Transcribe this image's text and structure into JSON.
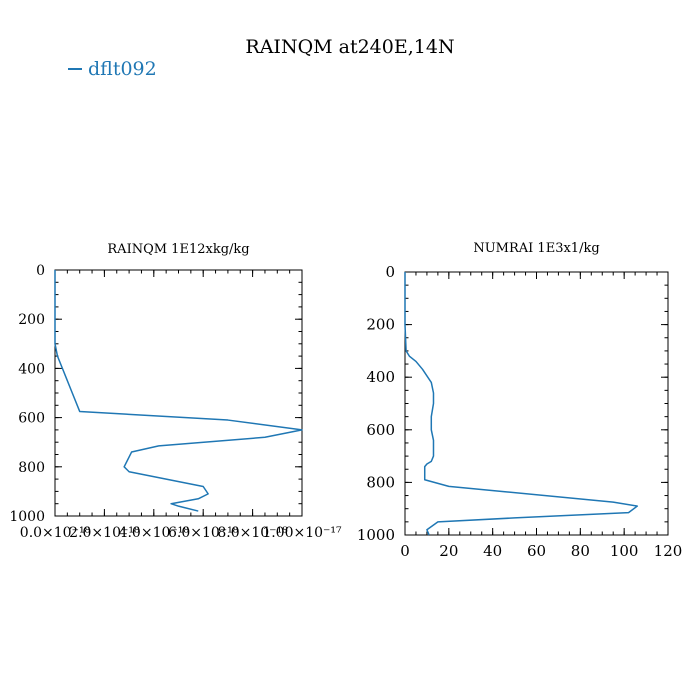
{
  "title": "RAINQM at240E,14N",
  "legend": {
    "label": "dflt092",
    "color": "#1f77b4"
  },
  "chart_data": [
    {
      "type": "line",
      "title": "RAINQM  1E12xkg/kg",
      "xlabel": "",
      "ylabel": "",
      "xlim": [
        0,
        1e-17
      ],
      "ylim": [
        1000,
        0
      ],
      "xticks": [
        0,
        2e-18,
        4e-18,
        6e-18,
        8e-18,
        1e-17
      ],
      "xtick_labels": [
        "0.0×10⁻¹⁸",
        "2.0×10⁻¹⁸",
        "4.0×10⁻¹⁸",
        "6.0×10⁻¹⁸",
        "8.0×10⁻¹⁸",
        "1.00×10⁻¹⁷"
      ],
      "yticks": [
        0,
        200,
        400,
        600,
        800,
        1000
      ],
      "ytick_labels": [
        "0",
        "200",
        "400",
        "600",
        "800",
        "1000"
      ],
      "series": [
        {
          "name": "dflt092",
          "color": "#1f77b4",
          "x": [
            0,
            0,
            0,
            0,
            1e-19,
            3e-19,
            5e-19,
            7e-19,
            1e-18,
            7e-18,
            1e-17,
            8.5e-18,
            4.2e-18,
            3.1e-18,
            2.8e-18,
            3e-18,
            4.5e-18,
            6e-18,
            6.2e-18,
            5.8e-18,
            4.7e-18,
            5e-18,
            5.8e-18
          ],
          "y": [
            0,
            100,
            200,
            300,
            350,
            400,
            450,
            500,
            575,
            610,
            650,
            680,
            715,
            740,
            800,
            820,
            850,
            880,
            910,
            930,
            950,
            960,
            980
          ]
        }
      ]
    },
    {
      "type": "line",
      "title": "NUMRAI  1E3x1/kg",
      "xlabel": "",
      "ylabel": "",
      "xlim": [
        0,
        120
      ],
      "ylim": [
        1000,
        0
      ],
      "xticks": [
        0,
        20,
        40,
        60,
        80,
        100,
        120
      ],
      "xtick_labels": [
        "0",
        "20",
        "40",
        "60",
        "80",
        "100",
        "120"
      ],
      "yticks": [
        0,
        200,
        400,
        600,
        800,
        1000
      ],
      "ytick_labels": [
        "0",
        "200",
        "400",
        "600",
        "800",
        "1000"
      ],
      "series": [
        {
          "name": "dflt092",
          "color": "#1f77b4",
          "x": [
            0,
            0,
            0,
            0.5,
            2,
            5,
            8,
            12,
            13,
            13,
            12,
            12,
            13,
            13,
            12,
            10,
            9,
            9,
            20,
            45,
            95,
            106,
            102,
            50,
            15,
            10,
            11
          ],
          "y": [
            0,
            100,
            200,
            300,
            320,
            340,
            370,
            420,
            460,
            500,
            550,
            600,
            640,
            700,
            720,
            730,
            740,
            790,
            815,
            835,
            875,
            890,
            915,
            935,
            950,
            980,
            1000
          ]
        }
      ]
    }
  ]
}
